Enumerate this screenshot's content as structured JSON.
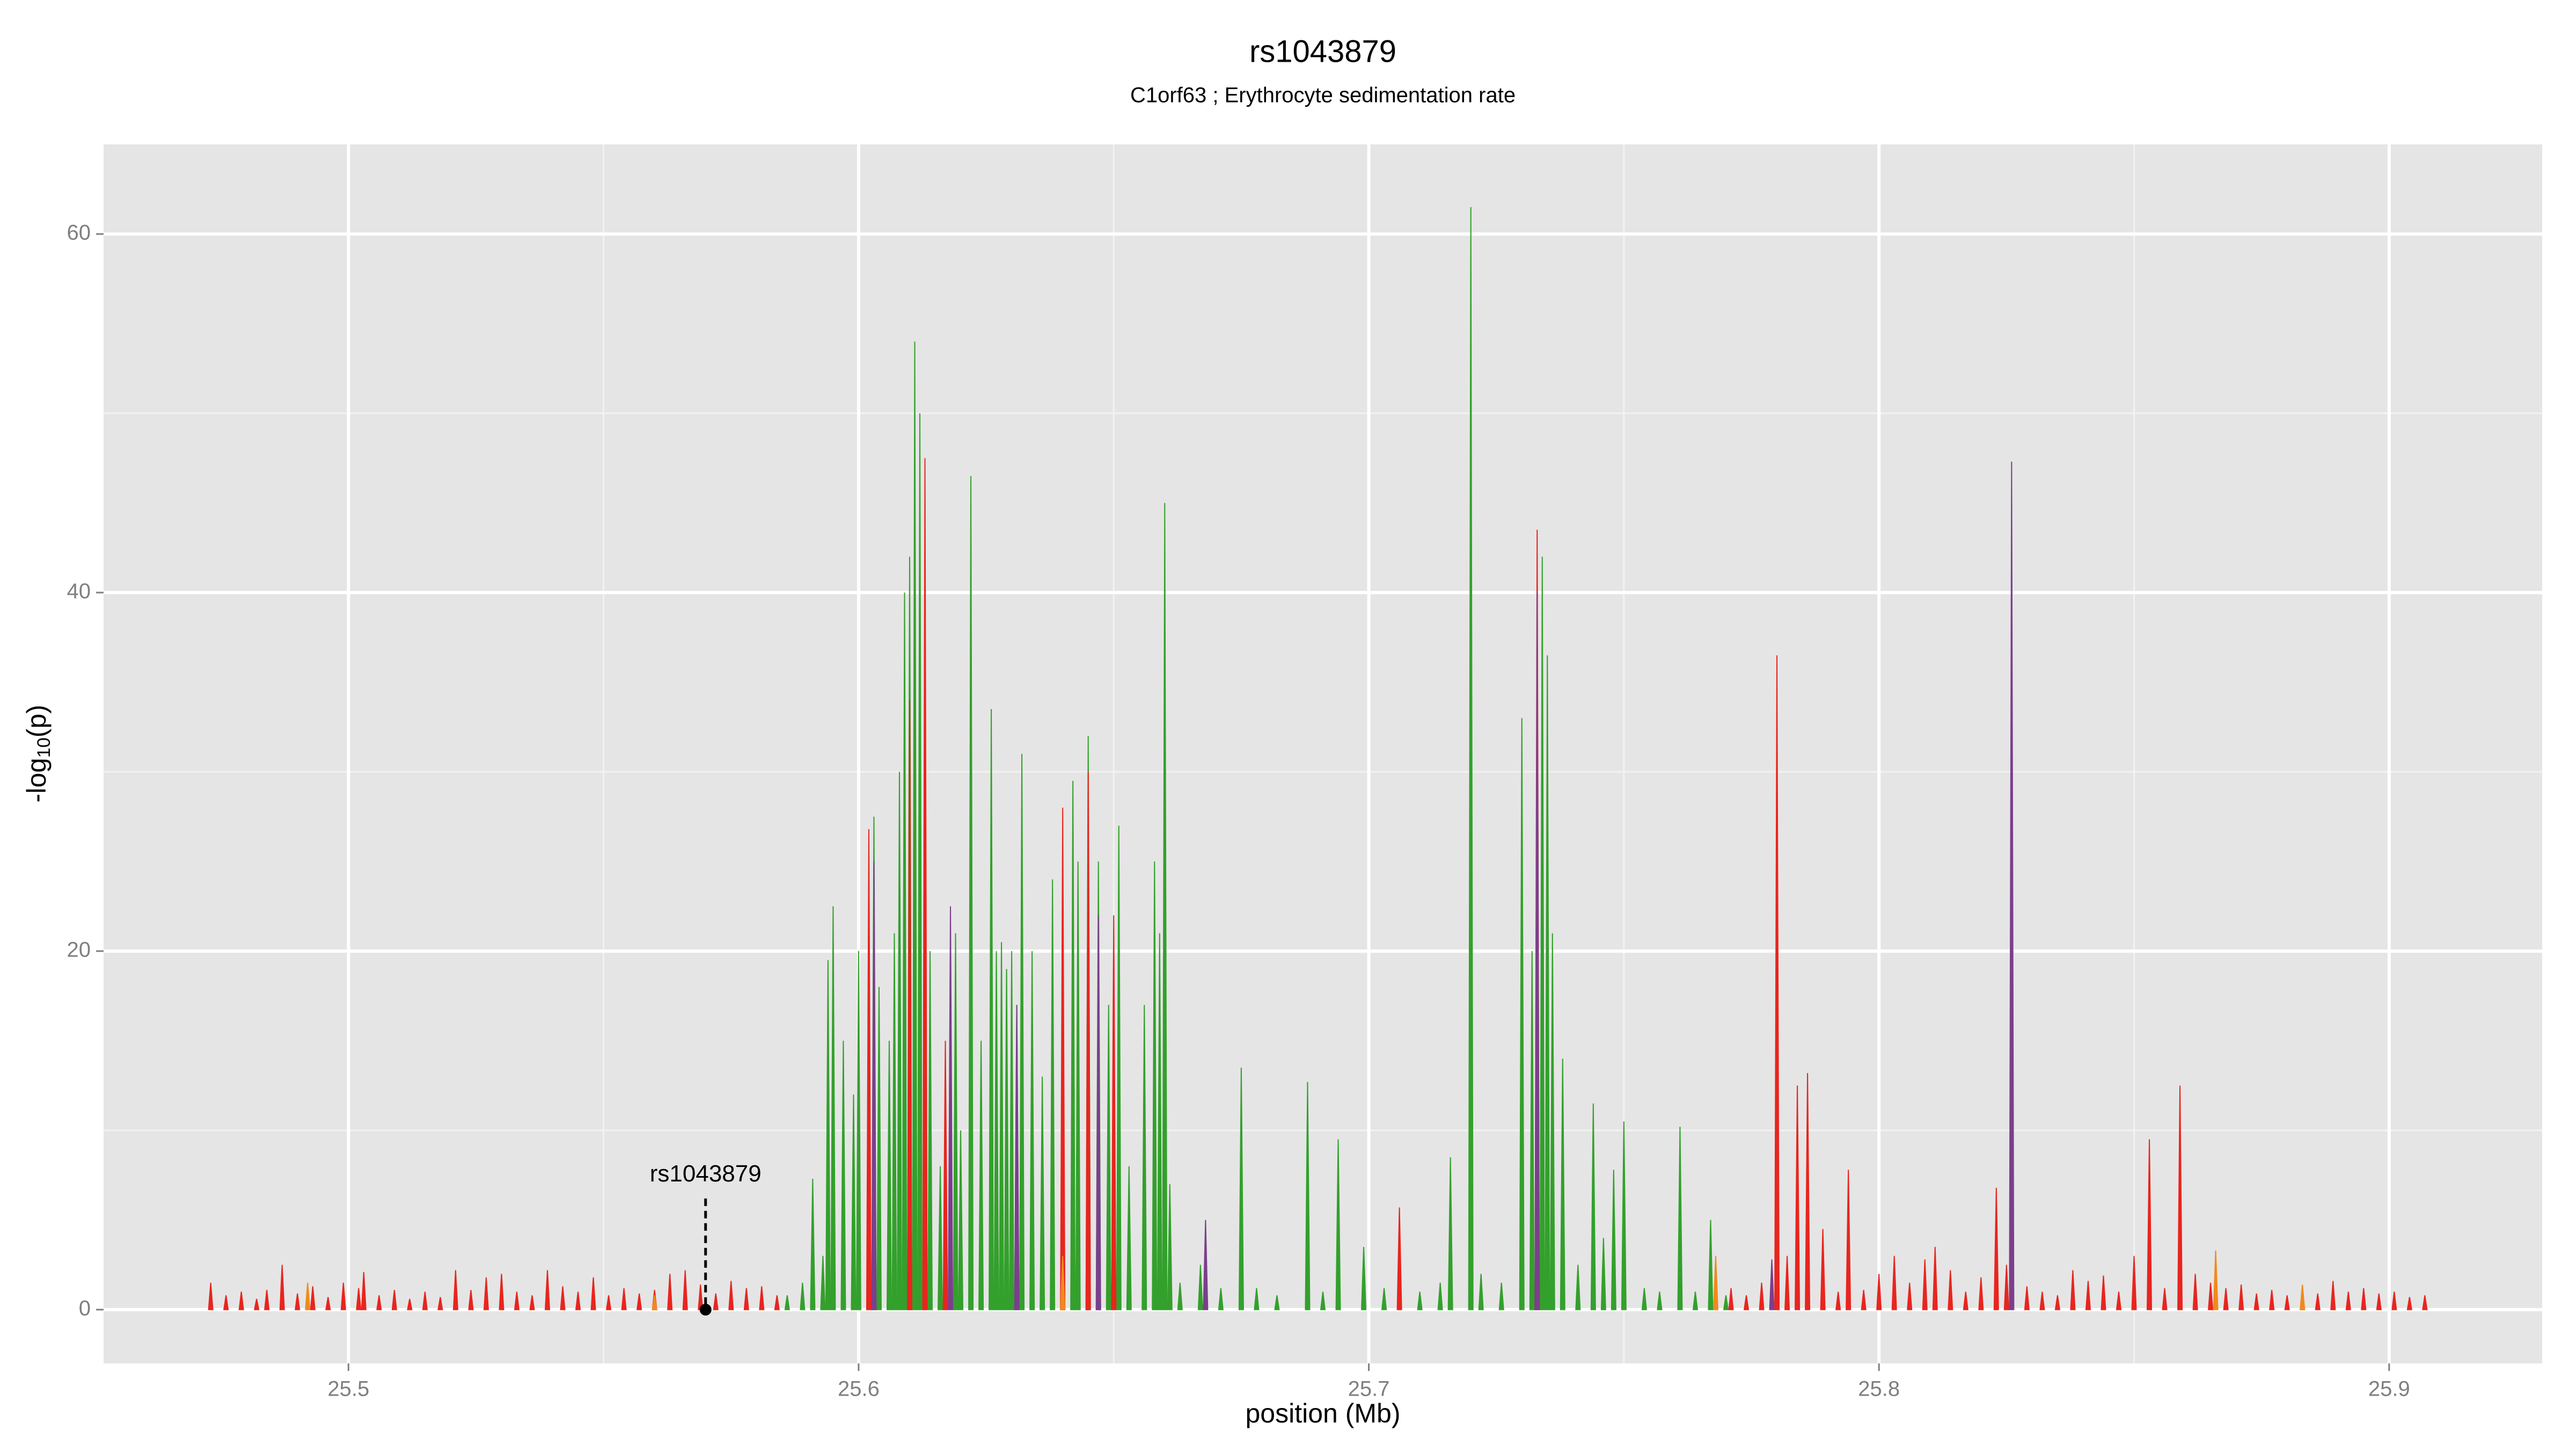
{
  "chart_data": {
    "type": "spike",
    "title": "rs1043879",
    "subtitle": "C1orf63 ; Erythrocyte sedimentation rate",
    "xlabel": "position (Mb)",
    "ylabel": {
      "pre": "-log",
      "sub": "10",
      "post": "(p)"
    },
    "xlim": [
      25.452,
      25.93
    ],
    "ylim": [
      -3,
      65
    ],
    "xticks": [
      25.5,
      25.6,
      25.7,
      25.8,
      25.9
    ],
    "yticks": [
      0,
      20,
      40,
      60
    ],
    "x_minor_grid": [
      25.55,
      25.65,
      25.75,
      25.85
    ],
    "y_minor_grid": [
      10,
      30,
      50
    ],
    "grid": true,
    "annotation": {
      "text": "rs1043879",
      "x": 25.57
    },
    "series": [
      {
        "color": "#33a02c",
        "x": [
          25.586,
          25.589,
          25.591,
          25.593,
          25.594,
          25.595,
          25.597,
          25.599,
          25.6,
          25.603,
          25.604,
          25.606,
          25.607,
          25.608,
          25.609,
          25.61,
          25.611,
          25.612,
          25.614,
          25.616,
          25.619,
          25.62,
          25.622,
          25.624,
          25.626,
          25.627,
          25.628,
          25.629,
          25.63,
          25.631,
          25.632,
          25.634,
          25.636,
          25.638,
          25.64,
          25.642,
          25.643,
          25.645,
          25.647,
          25.649,
          25.651,
          25.653,
          25.656,
          25.658,
          25.659,
          25.66,
          25.661,
          25.663,
          25.667,
          25.671,
          25.675,
          25.678,
          25.682,
          25.688,
          25.691,
          25.694,
          25.699,
          25.703,
          25.71,
          25.714,
          25.716,
          25.72,
          25.722,
          25.726,
          25.73,
          25.732,
          25.734,
          25.735,
          25.736,
          25.738,
          25.741,
          25.744,
          25.746,
          25.748,
          25.75,
          25.754,
          25.757,
          25.761,
          25.764,
          25.767,
          25.77
        ],
        "values": [
          0.8,
          1.5,
          7.3,
          3,
          19.5,
          22.5,
          15,
          12,
          20,
          27.5,
          18,
          15,
          21,
          30,
          40,
          42,
          54,
          50,
          20,
          8,
          21,
          10,
          46.5,
          15,
          33.5,
          20,
          20.5,
          19,
          20,
          17,
          31,
          20,
          13,
          24,
          15,
          29.5,
          25,
          32,
          25,
          17,
          27,
          8,
          17,
          25,
          21,
          45,
          7,
          1.5,
          2.5,
          1.2,
          13.5,
          1.2,
          0.8,
          12.7,
          1,
          9.5,
          3.5,
          1.2,
          1,
          1.5,
          8.5,
          61.5,
          2,
          1.5,
          33,
          20,
          42,
          36.5,
          21,
          14,
          2.5,
          11.5,
          4,
          7.8,
          10.5,
          1.2,
          1,
          10.2,
          1,
          5,
          0.8
        ]
      },
      {
        "color": "#e8251e",
        "x": [
          25.473,
          25.476,
          25.479,
          25.482,
          25.484,
          25.487,
          25.49,
          25.493,
          25.496,
          25.499,
          25.502,
          25.503,
          25.506,
          25.509,
          25.512,
          25.515,
          25.518,
          25.521,
          25.524,
          25.527,
          25.53,
          25.533,
          25.536,
          25.539,
          25.542,
          25.545,
          25.548,
          25.551,
          25.554,
          25.557,
          25.56,
          25.563,
          25.566,
          25.569,
          25.572,
          25.575,
          25.578,
          25.581,
          25.584,
          25.602,
          25.61,
          25.613,
          25.617,
          25.64,
          25.645,
          25.65,
          25.706,
          25.733,
          25.771,
          25.774,
          25.777,
          25.78,
          25.782,
          25.784,
          25.786,
          25.789,
          25.792,
          25.794,
          25.797,
          25.8,
          25.803,
          25.806,
          25.809,
          25.811,
          25.814,
          25.817,
          25.82,
          25.823,
          25.825,
          25.829,
          25.832,
          25.835,
          25.838,
          25.841,
          25.844,
          25.847,
          25.85,
          25.853,
          25.856,
          25.859,
          25.862,
          25.865,
          25.868,
          25.871,
          25.874,
          25.877,
          25.88,
          25.883,
          25.886,
          25.889,
          25.892,
          25.895,
          25.898,
          25.901,
          25.904,
          25.907
        ],
        "values": [
          1.5,
          0.8,
          1,
          0.6,
          1.1,
          2.5,
          0.9,
          1.3,
          0.7,
          1.5,
          1.2,
          2.1,
          0.8,
          1.1,
          0.6,
          1,
          0.7,
          2.2,
          1.1,
          1.8,
          2,
          1,
          0.8,
          2.2,
          1.3,
          1,
          1.8,
          0.8,
          1.2,
          0.9,
          1.1,
          2,
          2.2,
          1.4,
          0.9,
          1.6,
          1.2,
          1.3,
          0.8,
          26.8,
          34,
          47.5,
          15,
          28,
          30,
          22,
          5.7,
          43.5,
          1.2,
          0.8,
          1.5,
          36.5,
          3,
          12.5,
          13.2,
          4.5,
          1,
          7.8,
          1.1,
          2,
          3,
          1.5,
          2.8,
          3.5,
          2.2,
          1,
          1.8,
          6.8,
          2.5,
          1.3,
          1,
          0.8,
          2.2,
          1.6,
          1.9,
          1,
          3,
          9.5,
          1.2,
          12.5,
          2,
          1.5,
          1.2,
          1.4,
          0.9,
          1.1,
          0.8,
          1.3,
          0.9,
          1.6,
          1,
          1.2,
          0.9,
          1,
          0.7,
          0.8
        ]
      },
      {
        "color": "#7b3f8c",
        "x": [
          25.603,
          25.618,
          25.631,
          25.647,
          25.668,
          25.733,
          25.779,
          25.826
        ],
        "values": [
          25,
          22.5,
          17,
          22,
          5,
          40,
          2.8,
          47.3
        ]
      },
      {
        "color": "#f08a1c",
        "x": [
          25.492,
          25.56,
          25.64,
          25.768,
          25.866,
          25.883
        ],
        "values": [
          1.5,
          0.8,
          3,
          3,
          3.3,
          1.4
        ]
      }
    ]
  }
}
